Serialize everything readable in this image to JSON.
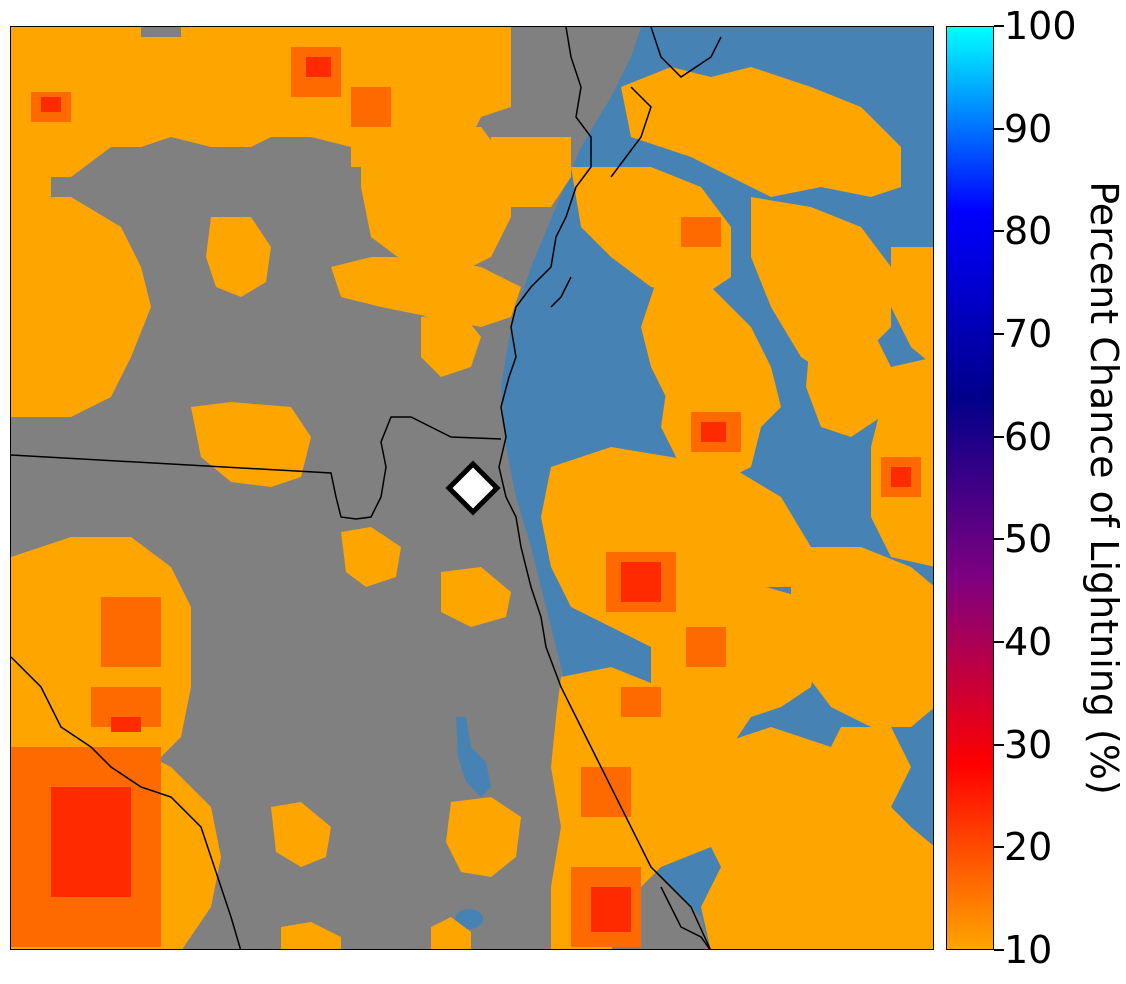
{
  "map": {
    "colors": {
      "land_background": "#808080",
      "water": "#4682b4",
      "low_probability": "#ffa500",
      "medium_probability": "#ff6a00",
      "high_probability": "#ff2a00",
      "coastline": "#000000",
      "site_marker_fill": "#ffffff",
      "site_marker_stroke": "#000000"
    },
    "marker": {
      "shape": "diamond",
      "icon": "site-diamond-icon"
    }
  },
  "colorbar": {
    "label": "Percent Chance of Lightning (%)",
    "ticks": [
      "10",
      "20",
      "30",
      "40",
      "50",
      "60",
      "70",
      "80",
      "90",
      "100"
    ],
    "range": [
      10,
      100
    ],
    "gradient_stops": [
      "#ffa500",
      "#ff0000",
      "#800080",
      "#00008b",
      "#0000ff",
      "#00ffff"
    ]
  }
}
